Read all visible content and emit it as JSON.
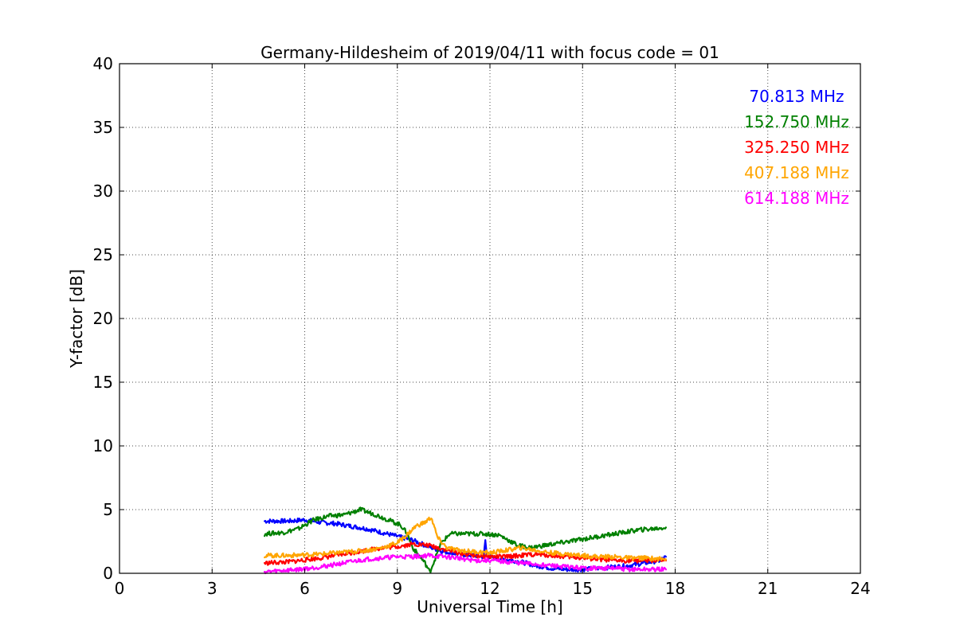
{
  "chart_data": {
    "type": "line",
    "title": "Germany-Hildesheim of 2019/04/11 with focus code = 01",
    "xlabel": "Universal Time [h]",
    "ylabel": "Y-factor [dB]",
    "xlim": [
      0,
      24
    ],
    "ylim": [
      0,
      40
    ],
    "xticks": [
      0,
      3,
      6,
      9,
      12,
      15,
      18,
      21,
      24
    ],
    "yticks": [
      0,
      5,
      10,
      15,
      20,
      25,
      30,
      35,
      40
    ],
    "grid": true,
    "legend_position": "top-right",
    "series": [
      {
        "name": "70.813 MHz",
        "color": "#0000ff",
        "points": [
          [
            4.7,
            4.1
          ],
          [
            5.5,
            4.1
          ],
          [
            6.0,
            4.2
          ],
          [
            6.5,
            4.0
          ],
          [
            7.0,
            3.9
          ],
          [
            7.5,
            3.7
          ],
          [
            8.0,
            3.5
          ],
          [
            8.5,
            3.2
          ],
          [
            9.0,
            2.9
          ],
          [
            9.5,
            2.6
          ],
          [
            10.0,
            2.1
          ],
          [
            10.5,
            1.7
          ],
          [
            11.0,
            1.5
          ],
          [
            11.5,
            1.4
          ],
          [
            11.8,
            1.3
          ],
          [
            11.85,
            2.6
          ],
          [
            11.9,
            1.3
          ],
          [
            12.5,
            1.1
          ],
          [
            13.0,
            0.9
          ],
          [
            13.5,
            0.6
          ],
          [
            14.0,
            0.4
          ],
          [
            14.5,
            0.3
          ],
          [
            15.0,
            0.3
          ],
          [
            15.5,
            0.4
          ],
          [
            16.0,
            0.5
          ],
          [
            16.5,
            0.6
          ],
          [
            17.0,
            0.8
          ],
          [
            17.5,
            1.0
          ],
          [
            17.7,
            1.3
          ]
        ]
      },
      {
        "name": "152.750 MHz",
        "color": "#008000",
        "points": [
          [
            4.7,
            3.1
          ],
          [
            5.3,
            3.2
          ],
          [
            5.8,
            3.5
          ],
          [
            6.3,
            4.2
          ],
          [
            6.8,
            4.5
          ],
          [
            7.3,
            4.6
          ],
          [
            7.8,
            5.0
          ],
          [
            8.3,
            4.6
          ],
          [
            8.7,
            4.2
          ],
          [
            9.1,
            3.8
          ],
          [
            9.3,
            3.2
          ],
          [
            9.5,
            2.0
          ],
          [
            9.7,
            1.4
          ],
          [
            9.9,
            0.8
          ],
          [
            10.05,
            0.1
          ],
          [
            10.2,
            1.0
          ],
          [
            10.4,
            2.3
          ],
          [
            10.7,
            3.1
          ],
          [
            11.2,
            3.1
          ],
          [
            11.8,
            3.1
          ],
          [
            12.3,
            3.0
          ],
          [
            12.6,
            2.6
          ],
          [
            12.9,
            2.2
          ],
          [
            13.3,
            2.0
          ],
          [
            13.8,
            2.2
          ],
          [
            14.3,
            2.4
          ],
          [
            14.8,
            2.6
          ],
          [
            15.3,
            2.8
          ],
          [
            15.8,
            3.0
          ],
          [
            16.3,
            3.2
          ],
          [
            16.8,
            3.4
          ],
          [
            17.3,
            3.5
          ],
          [
            17.7,
            3.6
          ]
        ]
      },
      {
        "name": "325.250 MHz",
        "color": "#ff0000",
        "points": [
          [
            4.7,
            0.8
          ],
          [
            5.5,
            0.9
          ],
          [
            6.5,
            1.2
          ],
          [
            7.5,
            1.6
          ],
          [
            8.5,
            2.0
          ],
          [
            9.0,
            2.1
          ],
          [
            9.5,
            2.3
          ],
          [
            10.0,
            2.2
          ],
          [
            10.5,
            1.9
          ],
          [
            11.0,
            1.6
          ],
          [
            11.5,
            1.4
          ],
          [
            12.0,
            1.3
          ],
          [
            12.5,
            1.3
          ],
          [
            13.0,
            1.4
          ],
          [
            13.5,
            1.5
          ],
          [
            14.0,
            1.4
          ],
          [
            14.5,
            1.3
          ],
          [
            15.0,
            1.2
          ],
          [
            15.5,
            1.1
          ],
          [
            16.0,
            1.0
          ],
          [
            16.5,
            1.0
          ],
          [
            17.0,
            1.0
          ],
          [
            17.7,
            1.0
          ]
        ]
      },
      {
        "name": "407.188 MHz",
        "color": "#ffa500",
        "points": [
          [
            4.7,
            1.4
          ],
          [
            5.5,
            1.4
          ],
          [
            6.5,
            1.5
          ],
          [
            7.0,
            1.6
          ],
          [
            7.5,
            1.7
          ],
          [
            8.0,
            1.8
          ],
          [
            8.5,
            2.0
          ],
          [
            9.0,
            2.4
          ],
          [
            9.3,
            3.0
          ],
          [
            9.6,
            3.7
          ],
          [
            9.9,
            4.0
          ],
          [
            10.1,
            4.4
          ],
          [
            10.3,
            2.8
          ],
          [
            10.6,
            2.0
          ],
          [
            11.0,
            1.8
          ],
          [
            11.5,
            1.7
          ],
          [
            12.0,
            1.6
          ],
          [
            12.5,
            1.8
          ],
          [
            13.0,
            2.0
          ],
          [
            13.5,
            1.8
          ],
          [
            14.0,
            1.6
          ],
          [
            14.5,
            1.5
          ],
          [
            15.0,
            1.4
          ],
          [
            15.5,
            1.3
          ],
          [
            16.0,
            1.3
          ],
          [
            16.5,
            1.2
          ],
          [
            17.0,
            1.2
          ],
          [
            17.7,
            1.1
          ]
        ]
      },
      {
        "name": "614.188 MHz",
        "color": "#ff00ff",
        "points": [
          [
            4.7,
            0.1
          ],
          [
            5.2,
            0.2
          ],
          [
            5.8,
            0.3
          ],
          [
            6.5,
            0.5
          ],
          [
            7.0,
            0.7
          ],
          [
            7.5,
            0.9
          ],
          [
            8.0,
            1.1
          ],
          [
            8.5,
            1.2
          ],
          [
            9.0,
            1.3
          ],
          [
            9.5,
            1.3
          ],
          [
            10.0,
            1.4
          ],
          [
            10.5,
            1.3
          ],
          [
            11.0,
            1.2
          ],
          [
            11.5,
            1.0
          ],
          [
            12.0,
            1.0
          ],
          [
            12.5,
            0.9
          ],
          [
            13.0,
            0.8
          ],
          [
            13.5,
            0.7
          ],
          [
            14.0,
            0.6
          ],
          [
            14.5,
            0.5
          ],
          [
            15.0,
            0.4
          ],
          [
            15.5,
            0.4
          ],
          [
            16.0,
            0.4
          ],
          [
            16.5,
            0.3
          ],
          [
            17.0,
            0.3
          ],
          [
            17.7,
            0.3
          ]
        ]
      }
    ]
  }
}
